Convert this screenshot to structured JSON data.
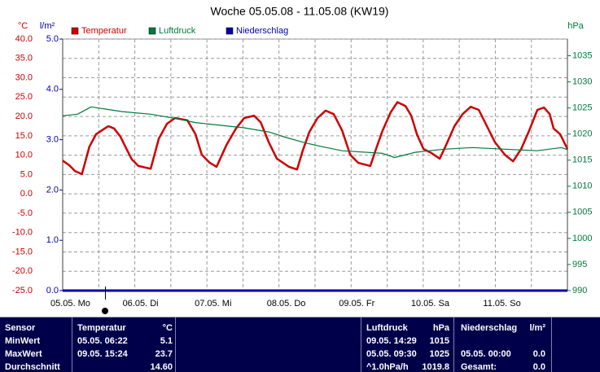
{
  "chart_data": {
    "type": "line",
    "title": "Woche 05.05.08 - 11.05.08 (KW19)",
    "y_label": "°C",
    "y3_label": "l/m²",
    "y2_label": "hPa",
    "xlim": [
      0,
      168
    ],
    "xticks": [
      {
        "value": 0,
        "label": "05.05. Mo"
      },
      {
        "value": 24,
        "label": "06.05. Di"
      },
      {
        "value": 48,
        "label": "07.05. Mi"
      },
      {
        "value": 72,
        "label": "08.05. Do"
      },
      {
        "value": 96,
        "label": "09.05. Fr"
      },
      {
        "value": 120,
        "label": "10.05. Sa"
      },
      {
        "value": 144,
        "label": "11.05. So"
      }
    ],
    "xminor": [
      12,
      36,
      60,
      84,
      108,
      132,
      156
    ],
    "ylim": [
      -25,
      40
    ],
    "yticks": [
      {
        "value": 40,
        "label": "40.0"
      },
      {
        "value": 35,
        "label": "35.0"
      },
      {
        "value": 30,
        "label": "30.0"
      },
      {
        "value": 25,
        "label": "25.0"
      },
      {
        "value": 20,
        "label": "20.0"
      },
      {
        "value": 15,
        "label": "15.0"
      },
      {
        "value": 10,
        "label": "10.0"
      },
      {
        "value": 5,
        "label": "5.0"
      },
      {
        "value": 0,
        "label": "0.0"
      },
      {
        "value": -5,
        "label": "-5.0"
      },
      {
        "value": -10,
        "label": "-10.0"
      },
      {
        "value": -15,
        "label": "-15.0"
      },
      {
        "value": -20,
        "label": "-20.0"
      },
      {
        "value": -25,
        "label": "-25.0"
      }
    ],
    "y3lim": [
      0,
      5
    ],
    "y3ticks": [
      {
        "value": 5,
        "label": "5.0"
      },
      {
        "value": 4,
        "label": "4.0"
      },
      {
        "value": 3,
        "label": "3.0"
      },
      {
        "value": 2,
        "label": "2.0"
      },
      {
        "value": 1,
        "label": "1.0"
      },
      {
        "value": 0,
        "label": "0.0"
      }
    ],
    "y2lim": [
      990,
      1038.2
    ],
    "y2ticks": [
      1035,
      1030,
      1025,
      1020,
      1015,
      1010,
      1005,
      1000,
      995,
      990
    ],
    "grid": true,
    "series": [
      {
        "name": "Temperatur",
        "color": "#cc0000",
        "axis": "y",
        "x": [
          0,
          2.2,
          4.1,
          6.4,
          8.9,
          11.1,
          13.0,
          15.2,
          17.1,
          19.2,
          21.1,
          23.0,
          25.2,
          29.3,
          32.0,
          34.7,
          37.4,
          41.5,
          44.2,
          46.3,
          49.0,
          51.2,
          54.5,
          57.7,
          60.4,
          63.7,
          65.9,
          68.6,
          71.3,
          75.3,
          78.0,
          79.9,
          82.1,
          84.8,
          87.5,
          90.2,
          93.0,
          95.7,
          98.4,
          102.4,
          104.3,
          106.5,
          109.2,
          111.4,
          114.1,
          116.0,
          117.9,
          120.1,
          122.8,
          125.5,
          127.6,
          130.4,
          133.1,
          135.8,
          138.5,
          141.2,
          143.9,
          147.2,
          149.9,
          152.6,
          155.3,
          158.0,
          160.2,
          162.1,
          163.4,
          165.6,
          168
        ],
        "values": [
          8.6,
          7.4,
          5.9,
          5.1,
          12.2,
          15.4,
          16.4,
          17.5,
          16.9,
          14.8,
          11.8,
          8.9,
          7.2,
          6.5,
          14.3,
          18.1,
          19.6,
          19.0,
          15.4,
          10.1,
          8.0,
          7.0,
          12.6,
          16.9,
          19.6,
          20.2,
          18.5,
          13.3,
          9.1,
          7.0,
          6.3,
          11.2,
          16.0,
          19.6,
          21.5,
          20.6,
          16.4,
          10.1,
          8.0,
          7.2,
          11.6,
          16.4,
          21.1,
          23.7,
          22.7,
          20.2,
          15.4,
          11.6,
          10.5,
          9.1,
          12.6,
          17.5,
          20.6,
          22.5,
          21.7,
          17.5,
          13.3,
          10.1,
          8.4,
          11.6,
          16.4,
          21.7,
          22.3,
          20.6,
          16.9,
          15.4,
          11.6
        ]
      },
      {
        "name": "Luftdruck",
        "color": "#007a3d",
        "axis": "y2",
        "x": [
          0,
          4.9,
          9.5,
          13,
          19.8,
          29.3,
          37.4,
          44.2,
          60.4,
          68.6,
          74,
          80.8,
          86.2,
          93,
          106.5,
          110.5,
          117.3,
          126.8,
          136.3,
          157.9,
          166,
          168
        ],
        "values": [
          1023.5,
          1023.8,
          1025.2,
          1024.9,
          1024.3,
          1023.8,
          1023.0,
          1022.2,
          1021.2,
          1020.4,
          1019.4,
          1018.3,
          1017.6,
          1016.8,
          1016.3,
          1015.5,
          1016.5,
          1017.1,
          1017.4,
          1016.8,
          1017.4,
          1017.0
        ]
      },
      {
        "name": "Niederschlag",
        "color": "#0000aa",
        "axis": "y3",
        "x": [
          0,
          168
        ],
        "values": [
          0,
          0
        ]
      }
    ]
  },
  "table": {
    "header": {
      "sensor": "Sensor",
      "temp_time": "Temperatur",
      "temp": "°C",
      "press_time": "Luftdruck",
      "press": "hPa",
      "rain_time": "Niederschlag",
      "rain": "l/m²"
    },
    "rows": [
      {
        "sensor": "MinWert",
        "temp_time": "05.05. 06:22",
        "temp": "5.1",
        "press_time": "09.05. 14:29",
        "press": "1015"
      },
      {
        "sensor": "MaxWert",
        "temp_time": "09.05. 15:24",
        "temp": "23.7",
        "press_time": "05.05. 09:30",
        "press": "1025",
        "rain_time": "05.05. 00:00",
        "rain": "0.0"
      },
      {
        "sensor": "Durchschnitt",
        "temp": "14.60",
        "press_time": "^1.0hPa/h",
        "press": "1019.8",
        "rain_time": "Gesamt:",
        "rain": "0.0"
      }
    ]
  }
}
